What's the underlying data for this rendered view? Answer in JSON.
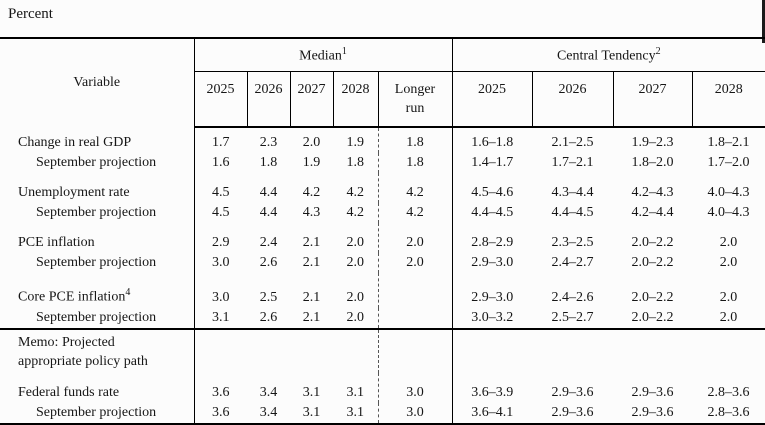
{
  "unit_label": "Percent",
  "header": {
    "variable": "Variable",
    "median": {
      "label": "Median",
      "footnote": "1",
      "years": [
        "2025",
        "2026",
        "2027",
        "2028"
      ],
      "longer_run": "Longer run"
    },
    "central_tendency": {
      "label": "Central Tendency",
      "footnote": "2",
      "years": [
        "2025",
        "2026",
        "2027",
        "2028"
      ]
    }
  },
  "rows": [
    {
      "type": "data",
      "label": "Change in real GDP",
      "footnote": "",
      "indent": false,
      "group_start": false,
      "median": [
        "1.7",
        "2.3",
        "2.0",
        "1.9"
      ],
      "longer_run": "1.8",
      "central_tendency": [
        "1.6–1.8",
        "2.1–2.5",
        "1.9–2.3",
        "1.8–2.1"
      ]
    },
    {
      "type": "data",
      "label": "September projection",
      "footnote": "",
      "indent": true,
      "group_start": false,
      "median": [
        "1.6",
        "1.8",
        "1.9",
        "1.8"
      ],
      "longer_run": "1.8",
      "central_tendency": [
        "1.4–1.7",
        "1.7–2.1",
        "1.8–2.0",
        "1.7–2.0"
      ]
    },
    {
      "type": "data",
      "label": "Unemployment rate",
      "footnote": "",
      "indent": false,
      "group_start": true,
      "median": [
        "4.5",
        "4.4",
        "4.2",
        "4.2"
      ],
      "longer_run": "4.2",
      "central_tendency": [
        "4.5–4.6",
        "4.3–4.4",
        "4.2–4.3",
        "4.0–4.3"
      ]
    },
    {
      "type": "data",
      "label": "September projection",
      "footnote": "",
      "indent": true,
      "group_start": false,
      "median": [
        "4.5",
        "4.4",
        "4.3",
        "4.2"
      ],
      "longer_run": "4.2",
      "central_tendency": [
        "4.4–4.5",
        "4.4–4.5",
        "4.2–4.4",
        "4.0–4.3"
      ]
    },
    {
      "type": "data",
      "label": "PCE inflation",
      "footnote": "",
      "indent": false,
      "group_start": true,
      "median": [
        "2.9",
        "2.4",
        "2.1",
        "2.0"
      ],
      "longer_run": "2.0",
      "central_tendency": [
        "2.8–2.9",
        "2.3–2.5",
        "2.0–2.2",
        "2.0"
      ]
    },
    {
      "type": "data",
      "label": "September projection",
      "footnote": "",
      "indent": true,
      "group_start": false,
      "median": [
        "3.0",
        "2.6",
        "2.1",
        "2.0"
      ],
      "longer_run": "2.0",
      "central_tendency": [
        "2.9–3.0",
        "2.4–2.7",
        "2.0–2.2",
        "2.0"
      ]
    },
    {
      "type": "data",
      "label": "Core PCE inflation",
      "footnote": "4",
      "indent": false,
      "group_start": true,
      "median": [
        "3.0",
        "2.5",
        "2.1",
        "2.0"
      ],
      "longer_run": "",
      "central_tendency": [
        "2.9–3.0",
        "2.4–2.6",
        "2.0–2.2",
        "2.0"
      ]
    },
    {
      "type": "data",
      "label": "September projection",
      "footnote": "",
      "indent": true,
      "group_start": false,
      "median": [
        "3.1",
        "2.6",
        "2.1",
        "2.0"
      ],
      "longer_run": "",
      "central_tendency": [
        "3.0–3.2",
        "2.5–2.7",
        "2.0–2.2",
        "2.0"
      ]
    },
    {
      "type": "memo",
      "label_lines": [
        "Memo: Projected",
        "appropriate policy path"
      ],
      "indent": false,
      "group_start": false,
      "median": [
        "",
        "",
        "",
        ""
      ],
      "longer_run": "",
      "central_tendency": [
        "",
        "",
        "",
        ""
      ]
    },
    {
      "type": "data",
      "label": "Federal funds rate",
      "footnote": "",
      "indent": false,
      "group_start": true,
      "median": [
        "3.6",
        "3.4",
        "3.1",
        "3.1"
      ],
      "longer_run": "3.0",
      "central_tendency": [
        "3.6–3.9",
        "2.9–3.6",
        "2.9–3.6",
        "2.8–3.6"
      ]
    },
    {
      "type": "data",
      "label": "September projection",
      "footnote": "",
      "indent": true,
      "group_start": false,
      "median": [
        "3.6",
        "3.4",
        "3.1",
        "3.1"
      ],
      "longer_run": "3.0",
      "central_tendency": [
        "3.6–4.1",
        "2.9–3.6",
        "2.9–3.6",
        "2.8–3.6"
      ]
    }
  ]
}
